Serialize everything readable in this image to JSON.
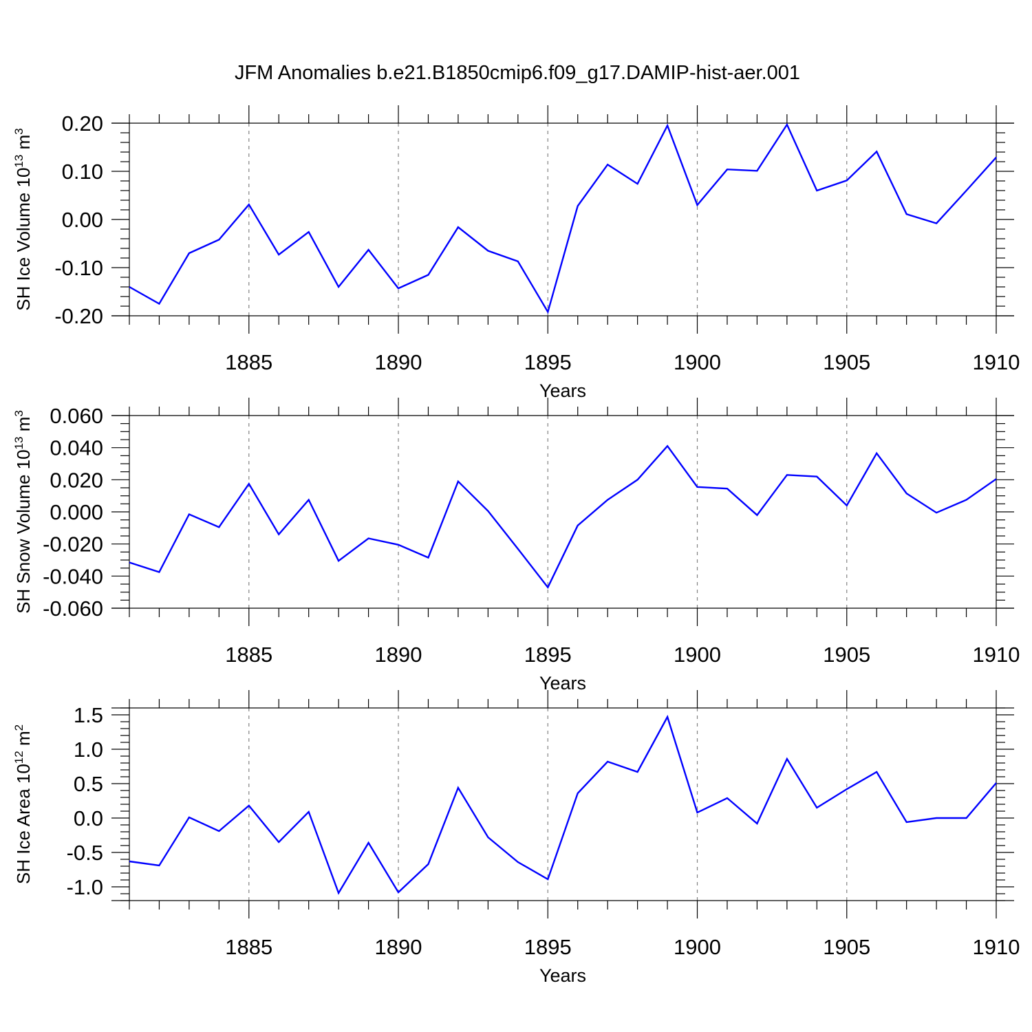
{
  "title": "JFM Anomalies b.e21.B1850cmip6.f09_g17.DAMIP-hist-aer.001",
  "colors": {
    "line": "#0000ff",
    "axis": "#000000",
    "grid": "#808080"
  },
  "chart_data": [
    {
      "type": "line",
      "title": "JFM Anomalies b.e21.B1850cmip6.f09_g17.DAMIP-hist-aer.001",
      "xlabel": "Years",
      "ylabel": {
        "text": "SH Ice Volume 10",
        "sup1": "13",
        "mid": " m",
        "sup2": "3"
      },
      "xlim": [
        1881,
        1910
      ],
      "ylim": [
        -0.2,
        0.2
      ],
      "xticks": [
        1885,
        1890,
        1895,
        1900,
        1905,
        1910
      ],
      "xtick_labels": [
        "1885",
        "1890",
        "1895",
        "1900",
        "1905",
        "1910"
      ],
      "yticks": [
        -0.2,
        -0.1,
        0.0,
        0.1,
        0.2
      ],
      "ytick_labels": [
        "-0.20",
        "-0.10",
        "0.00",
        "0.10",
        "0.20"
      ],
      "yminor_step": 0.02,
      "grid": "vertical dashed at major x ticks",
      "x": [
        1881,
        1882,
        1883,
        1884,
        1885,
        1886,
        1887,
        1888,
        1889,
        1890,
        1891,
        1892,
        1893,
        1894,
        1895,
        1896,
        1897,
        1898,
        1899,
        1900,
        1901,
        1902,
        1903,
        1904,
        1905,
        1906,
        1907,
        1908,
        1909,
        1910
      ],
      "series": [
        {
          "name": "SH Ice Volume",
          "values": [
            -0.14,
            -0.175,
            -0.07,
            -0.042,
            0.031,
            -0.073,
            -0.026,
            -0.14,
            -0.063,
            -0.143,
            -0.115,
            -0.016,
            -0.065,
            -0.087,
            -0.192,
            0.028,
            0.114,
            0.074,
            0.195,
            0.03,
            0.104,
            0.101,
            0.197,
            0.06,
            0.081,
            0.141,
            0.011,
            -0.008,
            0.06,
            0.129
          ]
        }
      ]
    },
    {
      "type": "line",
      "xlabel": "Years",
      "ylabel": {
        "text": "SH Snow Volume 10",
        "sup1": "13",
        "mid": " m",
        "sup2": "3"
      },
      "xlim": [
        1881,
        1910
      ],
      "ylim": [
        -0.06,
        0.06
      ],
      "xticks": [
        1885,
        1890,
        1895,
        1900,
        1905,
        1910
      ],
      "xtick_labels": [
        "1885",
        "1890",
        "1895",
        "1900",
        "1905",
        "1910"
      ],
      "yticks": [
        -0.06,
        -0.04,
        -0.02,
        0.0,
        0.02,
        0.04,
        0.06
      ],
      "ytick_labels": [
        "-0.060",
        "-0.040",
        "-0.020",
        "0.000",
        "0.020",
        "0.040",
        "0.060"
      ],
      "yminor_step": 0.005,
      "grid": "vertical dashed at major x ticks",
      "x": [
        1881,
        1882,
        1883,
        1884,
        1885,
        1886,
        1887,
        1888,
        1889,
        1890,
        1891,
        1892,
        1893,
        1894,
        1895,
        1896,
        1897,
        1898,
        1899,
        1900,
        1901,
        1902,
        1903,
        1904,
        1905,
        1906,
        1907,
        1908,
        1909,
        1910
      ],
      "series": [
        {
          "name": "SH Snow Volume",
          "values": [
            -0.0315,
            -0.0375,
            -0.0015,
            -0.0095,
            0.0175,
            -0.014,
            0.0075,
            -0.0305,
            -0.0165,
            -0.0205,
            -0.0285,
            0.019,
            0.0005,
            -0.023,
            -0.047,
            -0.0085,
            0.0075,
            0.02,
            0.041,
            0.0155,
            0.0145,
            -0.002,
            0.023,
            0.022,
            0.004,
            0.0365,
            0.0115,
            -0.0005,
            0.0075,
            0.0205
          ]
        }
      ]
    },
    {
      "type": "line",
      "xlabel": "Years",
      "ylabel": {
        "text": "SH Ice Area 10",
        "sup1": "12",
        "mid": " m",
        "sup2": "2"
      },
      "xlim": [
        1881,
        1910
      ],
      "ylim": [
        -1.2,
        1.6
      ],
      "xticks": [
        1885,
        1890,
        1895,
        1900,
        1905,
        1910
      ],
      "xtick_labels": [
        "1885",
        "1890",
        "1895",
        "1900",
        "1905",
        "1910"
      ],
      "yticks": [
        -1.0,
        -0.5,
        0.0,
        0.5,
        1.0,
        1.5
      ],
      "ytick_labels": [
        "-1.0",
        "-0.5",
        "0.0",
        "0.5",
        "1.0",
        "1.5"
      ],
      "yminor_step": 0.1,
      "grid": "vertical dashed at major x ticks",
      "x": [
        1881,
        1882,
        1883,
        1884,
        1885,
        1886,
        1887,
        1888,
        1889,
        1890,
        1891,
        1892,
        1893,
        1894,
        1895,
        1896,
        1897,
        1898,
        1899,
        1900,
        1901,
        1902,
        1903,
        1904,
        1905,
        1906,
        1907,
        1908,
        1909,
        1910
      ],
      "series": [
        {
          "name": "SH Ice Area",
          "values": [
            -0.63,
            -0.69,
            0.01,
            -0.19,
            0.18,
            -0.35,
            0.09,
            -1.09,
            -0.36,
            -1.08,
            -0.67,
            0.44,
            -0.28,
            -0.64,
            -0.89,
            0.36,
            0.82,
            0.67,
            1.47,
            0.08,
            0.29,
            -0.08,
            0.86,
            0.15,
            0.42,
            0.67,
            -0.06,
            0.0,
            0.0,
            0.51
          ]
        }
      ]
    }
  ]
}
